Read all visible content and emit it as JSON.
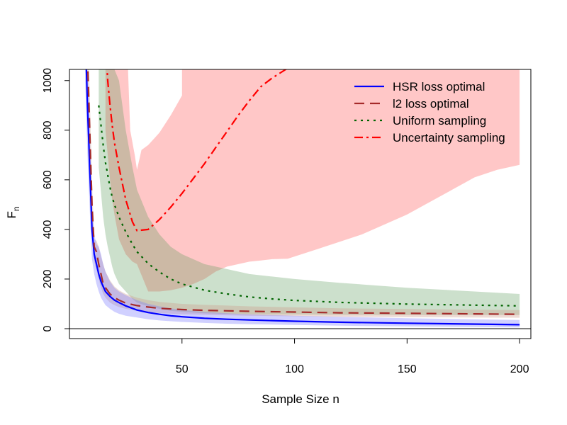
{
  "chart_data": {
    "type": "line",
    "title": "",
    "xlabel": "Sample Size n",
    "ylabel_main": "F",
    "ylabel_sub": "n",
    "xlim": [
      0,
      205
    ],
    "ylim": [
      -40,
      1045
    ],
    "xticks": [
      50,
      100,
      150,
      200
    ],
    "yticks": [
      0,
      200,
      400,
      600,
      800,
      1000
    ],
    "hline_y": 0,
    "grid": false,
    "legend_position": "top-right",
    "series": [
      {
        "name": "HSR loss optimal",
        "color": "#0000ff",
        "dash": "solid",
        "band_color": "#7777ff",
        "band_opacity": 0.35,
        "x": [
          7,
          8,
          9,
          10,
          11,
          12,
          13,
          14,
          15,
          16,
          18,
          20,
          22,
          25,
          30,
          35,
          40,
          45,
          50,
          60,
          70,
          80,
          100,
          120,
          150,
          200
        ],
        "y": [
          1200,
          900,
          650,
          400,
          300,
          260,
          220,
          190,
          170,
          150,
          130,
          115,
          105,
          92,
          75,
          65,
          58,
          52,
          48,
          42,
          38,
          35,
          30,
          26,
          22,
          16
        ],
        "lower": [
          1000,
          700,
          480,
          280,
          220,
          180,
          150,
          125,
          110,
          95,
          80,
          68,
          60,
          52,
          45,
          38,
          33,
          30,
          27,
          23,
          20,
          18,
          15,
          12,
          9,
          5
        ],
        "upper": [
          1300,
          1050,
          800,
          500,
          380,
          340,
          330,
          300,
          260,
          230,
          190,
          165,
          150,
          135,
          115,
          100,
          90,
          82,
          76,
          68,
          62,
          58,
          52,
          48,
          42,
          35
        ]
      },
      {
        "name": "l2 loss optimal",
        "color": "#a52a2a",
        "dash": "14,8",
        "band_color": "#cc9988",
        "band_opacity": 0.35,
        "x": [
          8,
          9,
          10,
          11,
          12,
          13,
          14,
          15,
          16,
          18,
          20,
          22,
          25,
          30,
          35,
          40,
          50,
          60,
          70,
          80,
          100,
          120,
          150,
          200
        ],
        "y": [
          1100,
          800,
          500,
          330,
          310,
          260,
          220,
          180,
          165,
          140,
          125,
          115,
          103,
          93,
          87,
          82,
          77,
          74,
          72,
          70,
          67,
          64,
          62,
          58
        ],
        "lower": [
          1000,
          700,
          420,
          270,
          240,
          200,
          165,
          140,
          125,
          105,
          95,
          87,
          80,
          72,
          67,
          63,
          58,
          56,
          54,
          52,
          50,
          48,
          46,
          44
        ],
        "upper": [
          1200,
          950,
          600,
          360,
          355,
          330,
          290,
          260,
          230,
          195,
          170,
          155,
          140,
          125,
          115,
          108,
          100,
          96,
          93,
          90,
          86,
          82,
          79,
          75
        ]
      },
      {
        "name": "Uniform sampling",
        "color": "#006400",
        "dash": "3,6",
        "band_color": "#559955",
        "band_opacity": 0.3,
        "x": [
          13,
          14,
          15,
          16,
          17,
          18,
          19,
          20,
          22,
          25,
          28,
          30,
          35,
          40,
          45,
          50,
          60,
          70,
          80,
          90,
          100,
          120,
          150,
          200
        ],
        "y": [
          900,
          820,
          740,
          670,
          620,
          570,
          530,
          500,
          450,
          390,
          340,
          310,
          262,
          228,
          200,
          180,
          155,
          140,
          128,
          120,
          114,
          106,
          99,
          92
        ],
        "lower": [
          650,
          550,
          450,
          380,
          330,
          290,
          250,
          220,
          180,
          150,
          120,
          105,
          90,
          80,
          72,
          68,
          62,
          60,
          58,
          57,
          57,
          56,
          55,
          55
        ],
        "upper": [
          1045,
          1045,
          1045,
          1045,
          1045,
          1045,
          1045,
          1045,
          1000,
          800,
          650,
          560,
          450,
          380,
          330,
          300,
          260,
          240,
          220,
          210,
          200,
          185,
          165,
          140
        ]
      },
      {
        "name": "Uncertainty sampling",
        "color": "#ff0000",
        "dash": "12,5,3,5",
        "band_color": "#ff9999",
        "band_opacity": 0.55,
        "x": [
          16,
          17,
          18,
          19,
          20,
          22,
          25,
          28,
          30,
          35,
          40,
          45,
          50,
          55,
          60,
          65,
          70,
          75,
          80,
          85,
          90,
          97
        ],
        "y": [
          1150,
          1000,
          900,
          820,
          750,
          650,
          520,
          430,
          395,
          400,
          440,
          490,
          545,
          605,
          665,
          730,
          795,
          860,
          920,
          975,
          1010,
          1050
        ],
        "lower": [
          800,
          700,
          600,
          520,
          460,
          360,
          300,
          270,
          260,
          150,
          150,
          155,
          165,
          180,
          200,
          230,
          250,
          260,
          270,
          275,
          280,
          282
        ],
        "upper": [
          1045,
          1045,
          1045,
          1045,
          1045,
          1045,
          1045,
          1045,
          1045,
          1045,
          1045,
          1045,
          1045,
          1045,
          1045,
          1045,
          1045,
          1045,
          1045,
          1045,
          1045,
          1045
        ]
      }
    ],
    "uncertainty_band_extension": {
      "x": [
        97,
        110,
        120,
        130,
        140,
        150,
        160,
        170,
        180,
        190,
        200
      ],
      "lower": [
        285,
        320,
        350,
        380,
        420,
        460,
        510,
        560,
        610,
        640,
        660
      ],
      "upper": [
        1045,
        1045,
        1045,
        1045,
        1045,
        1045,
        1045,
        1045,
        1045,
        1045,
        1045
      ]
    },
    "uncertainty_band_notch": {
      "x": [
        26,
        27,
        28,
        29,
        30,
        32,
        35,
        38,
        40,
        45,
        50
      ],
      "upper": [
        1045,
        800,
        750,
        700,
        640,
        720,
        740,
        770,
        790,
        860,
        940
      ]
    }
  }
}
